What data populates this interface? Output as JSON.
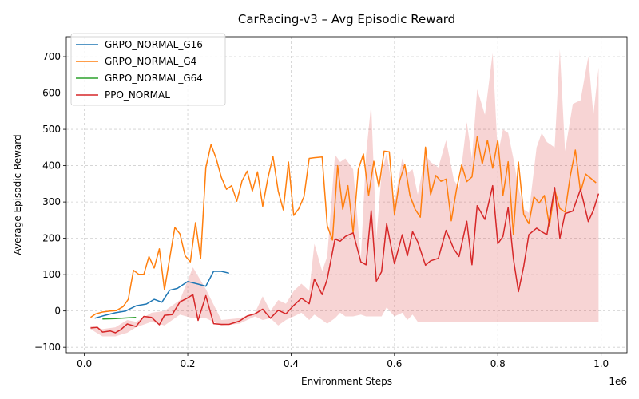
{
  "chart_data": {
    "type": "line",
    "title": "CarRacing-v3 – Avg Episodic Reward",
    "xlabel": "Environment Steps",
    "ylabel": "Average Episodic Reward",
    "x_offset_label": "1e6",
    "xlim": [
      -0.035,
      1.05
    ],
    "ylim": [
      -115,
      755
    ],
    "x_ticks": [
      0.0,
      0.2,
      0.4,
      0.6,
      0.8,
      1.0
    ],
    "x_tick_labels": [
      "0.0",
      "0.2",
      "0.4",
      "0.6",
      "0.8",
      "1.0"
    ],
    "y_ticks": [
      -100,
      0,
      100,
      200,
      300,
      400,
      500,
      600,
      700
    ],
    "y_tick_labels": [
      "−100",
      "0",
      "100",
      "200",
      "300",
      "400",
      "500",
      "600",
      "700"
    ],
    "grid": true,
    "legend_position": "top-left",
    "series": [
      {
        "name": "GRPO_NORMAL_G16",
        "color": "#1f77b4",
        "x": [
          0.02,
          0.04,
          0.06,
          0.08,
          0.1,
          0.12,
          0.135,
          0.15,
          0.165,
          0.18,
          0.2,
          0.22,
          0.235,
          0.25,
          0.265,
          0.28
        ],
        "y": [
          -20,
          -12,
          -5,
          0,
          14,
          19,
          32,
          24,
          57,
          62,
          81,
          74,
          68,
          109,
          109,
          104
        ]
      },
      {
        "name": "GRPO_NORMAL_G4",
        "color": "#ff7f0e",
        "x": [
          0.012,
          0.022,
          0.035,
          0.05,
          0.062,
          0.075,
          0.085,
          0.095,
          0.105,
          0.115,
          0.125,
          0.135,
          0.145,
          0.155,
          0.165,
          0.175,
          0.185,
          0.195,
          0.205,
          0.215,
          0.225,
          0.235,
          0.245,
          0.255,
          0.265,
          0.275,
          0.285,
          0.295,
          0.305,
          0.315,
          0.325,
          0.335,
          0.345,
          0.355,
          0.365,
          0.375,
          0.385,
          0.395,
          0.405,
          0.415,
          0.425,
          0.435,
          0.445,
          0.46,
          0.47,
          0.48,
          0.49,
          0.5,
          0.51,
          0.52,
          0.53,
          0.54,
          0.55,
          0.56,
          0.57,
          0.58,
          0.59,
          0.6,
          0.61,
          0.62,
          0.63,
          0.64,
          0.65,
          0.66,
          0.67,
          0.68,
          0.69,
          0.7,
          0.71,
          0.72,
          0.73,
          0.74,
          0.75,
          0.76,
          0.77,
          0.78,
          0.79,
          0.8,
          0.81,
          0.82,
          0.83,
          0.84,
          0.85,
          0.86,
          0.87,
          0.88,
          0.89,
          0.9,
          0.91,
          0.92,
          0.93,
          0.94,
          0.95,
          0.96,
          0.97,
          0.98,
          0.99
        ],
        "y": [
          -18,
          -8,
          -3,
          0,
          1,
          12,
          32,
          112,
          101,
          101,
          150,
          118,
          171,
          58,
          145,
          230,
          212,
          152,
          135,
          243,
          144,
          395,
          458,
          420,
          368,
          335,
          345,
          302,
          358,
          385,
          330,
          383,
          288,
          365,
          425,
          330,
          278,
          410,
          263,
          282,
          315,
          420,
          422,
          424,
          235,
          195,
          400,
          280,
          345,
          215,
          390,
          432,
          318,
          412,
          342,
          440,
          438,
          266,
          358,
          403,
          317,
          280,
          258,
          451,
          320,
          373,
          357,
          363,
          248,
          334,
          402,
          356,
          369,
          479,
          405,
          470,
          393,
          470,
          318,
          411,
          211,
          410,
          266,
          240,
          314,
          297,
          318,
          234,
          334,
          282,
          272,
          370,
          443,
          328,
          377,
          365,
          353
        ]
      },
      {
        "name": "GRPO_NORMAL_G64",
        "color": "#2ca02c",
        "x": [
          0.035,
          0.06,
          0.085,
          0.1
        ],
        "y": [
          -22,
          -21,
          -19,
          -18
        ]
      },
      {
        "name": "PPO_NORMAL",
        "color": "#d62728",
        "x": [
          0.012,
          0.025,
          0.035,
          0.05,
          0.06,
          0.07,
          0.083,
          0.1,
          0.115,
          0.13,
          0.145,
          0.155,
          0.17,
          0.185,
          0.2,
          0.21,
          0.22,
          0.235,
          0.25,
          0.265,
          0.28,
          0.3,
          0.315,
          0.33,
          0.345,
          0.36,
          0.375,
          0.39,
          0.405,
          0.42,
          0.435,
          0.445,
          0.46,
          0.47,
          0.485,
          0.495,
          0.505,
          0.52,
          0.535,
          0.545,
          0.555,
          0.565,
          0.575,
          0.585,
          0.6,
          0.615,
          0.625,
          0.635,
          0.645,
          0.66,
          0.67,
          0.685,
          0.7,
          0.715,
          0.725,
          0.74,
          0.75,
          0.76,
          0.775,
          0.79,
          0.8,
          0.81,
          0.82,
          0.83,
          0.84,
          0.85,
          0.86,
          0.875,
          0.885,
          0.895,
          0.91,
          0.92,
          0.93,
          0.945,
          0.96,
          0.975,
          0.985,
          0.995
        ],
        "y": [
          -47,
          -45,
          -58,
          -55,
          -60,
          -52,
          -36,
          -43,
          -15,
          -18,
          -38,
          -12,
          -10,
          25,
          36,
          45,
          -26,
          42,
          -35,
          -37,
          -37,
          -28,
          -14,
          -8,
          5,
          -20,
          2,
          -8,
          15,
          35,
          20,
          88,
          45,
          88,
          198,
          192,
          205,
          215,
          135,
          127,
          276,
          82,
          108,
          240,
          130,
          210,
          152,
          218,
          190,
          126,
          138,
          145,
          222,
          170,
          150,
          247,
          127,
          290,
          252,
          345,
          185,
          205,
          285,
          145,
          53,
          122,
          210,
          228,
          218,
          210,
          340,
          200,
          268,
          275,
          335,
          246,
          277,
          323
        ]
      }
    ],
    "band": {
      "series": "PPO_NORMAL",
      "color": "#d62728",
      "x": [
        0.012,
        0.035,
        0.06,
        0.083,
        0.1,
        0.13,
        0.155,
        0.185,
        0.21,
        0.235,
        0.265,
        0.3,
        0.33,
        0.345,
        0.36,
        0.375,
        0.39,
        0.405,
        0.42,
        0.435,
        0.445,
        0.46,
        0.47,
        0.485,
        0.495,
        0.505,
        0.52,
        0.535,
        0.545,
        0.555,
        0.565,
        0.575,
        0.585,
        0.6,
        0.615,
        0.625,
        0.635,
        0.645,
        0.66,
        0.67,
        0.685,
        0.7,
        0.715,
        0.725,
        0.74,
        0.75,
        0.76,
        0.775,
        0.79,
        0.8,
        0.81,
        0.82,
        0.83,
        0.84,
        0.85,
        0.86,
        0.875,
        0.885,
        0.895,
        0.91,
        0.92,
        0.93,
        0.945,
        0.96,
        0.975,
        0.985,
        0.995
      ],
      "upper": [
        -40,
        -50,
        -45,
        -25,
        -30,
        -5,
        0,
        30,
        120,
        60,
        -25,
        -20,
        -5,
        40,
        0,
        30,
        20,
        55,
        75,
        55,
        185,
        110,
        150,
        430,
        410,
        420,
        390,
        145,
        430,
        570,
        200,
        380,
        435,
        300,
        420,
        380,
        390,
        320,
        430,
        410,
        395,
        470,
        360,
        340,
        520,
        420,
        610,
        540,
        710,
        430,
        500,
        490,
        420,
        340,
        280,
        270,
        450,
        490,
        465,
        450,
        720,
        440,
        570,
        580,
        700,
        540,
        670
      ],
      "lower": [
        -50,
        -70,
        -70,
        -60,
        -45,
        -30,
        -40,
        -10,
        -20,
        -20,
        -40,
        -35,
        -15,
        -25,
        -20,
        -40,
        -25,
        -15,
        -5,
        -25,
        -10,
        -25,
        -35,
        -20,
        -5,
        -15,
        -15,
        -10,
        -15,
        -15,
        -15,
        -15,
        10,
        -15,
        -5,
        -25,
        -10,
        -30,
        -30,
        -30,
        -30,
        -30,
        -30,
        -30,
        -30,
        -30,
        -30,
        -30,
        -30,
        -30,
        -30,
        -30,
        -30,
        -30,
        -30,
        -30,
        -30,
        -30,
        -30,
        -30,
        -30,
        -30,
        -30,
        -30,
        -30,
        -30,
        -30
      ]
    }
  }
}
